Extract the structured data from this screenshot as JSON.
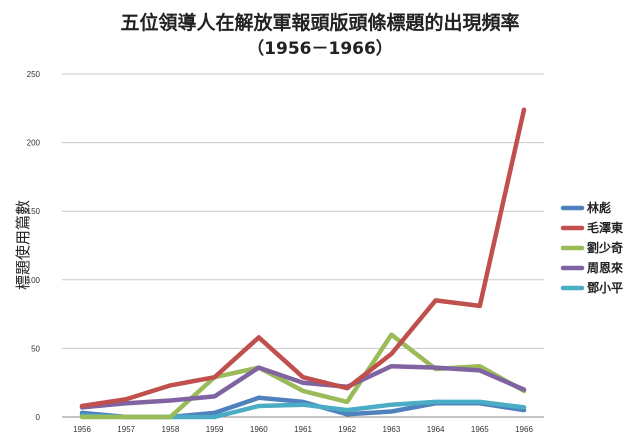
{
  "chart_data": {
    "type": "line",
    "title": "五位領導人在解放軍報頭版頭條標題的出現頻率",
    "subtitle": "（1956－1966）",
    "xlabel": "",
    "ylabel": "標題使用篇數",
    "x": [
      "1956",
      "1957",
      "1958",
      "1959",
      "1960",
      "1961",
      "1962",
      "1963",
      "1964",
      "1965",
      "1966"
    ],
    "yticks": [
      0,
      50,
      100,
      150,
      200,
      250
    ],
    "ylim": [
      0,
      250
    ],
    "grid": true,
    "legend": "right",
    "series": [
      {
        "name": "林彪",
        "color": "#4F81BD",
        "values": [
          3,
          0,
          0,
          3,
          14,
          11,
          2,
          4,
          10,
          10,
          5
        ]
      },
      {
        "name": "毛澤東",
        "color": "#C0504D",
        "values": [
          8,
          13,
          23,
          29,
          58,
          29,
          21,
          46,
          85,
          81,
          224
        ]
      },
      {
        "name": "劉少奇",
        "color": "#9BBB59",
        "values": [
          0,
          0,
          0,
          29,
          36,
          19,
          11,
          60,
          35,
          37,
          19
        ]
      },
      {
        "name": "周恩來",
        "color": "#8064A2",
        "values": [
          7,
          10,
          12,
          15,
          36,
          25,
          22,
          37,
          36,
          34,
          20
        ]
      },
      {
        "name": "鄧小平",
        "color": "#4BACC6",
        "values": [
          1,
          0,
          0,
          0,
          8,
          9,
          5,
          9,
          11,
          11,
          7
        ]
      }
    ]
  }
}
